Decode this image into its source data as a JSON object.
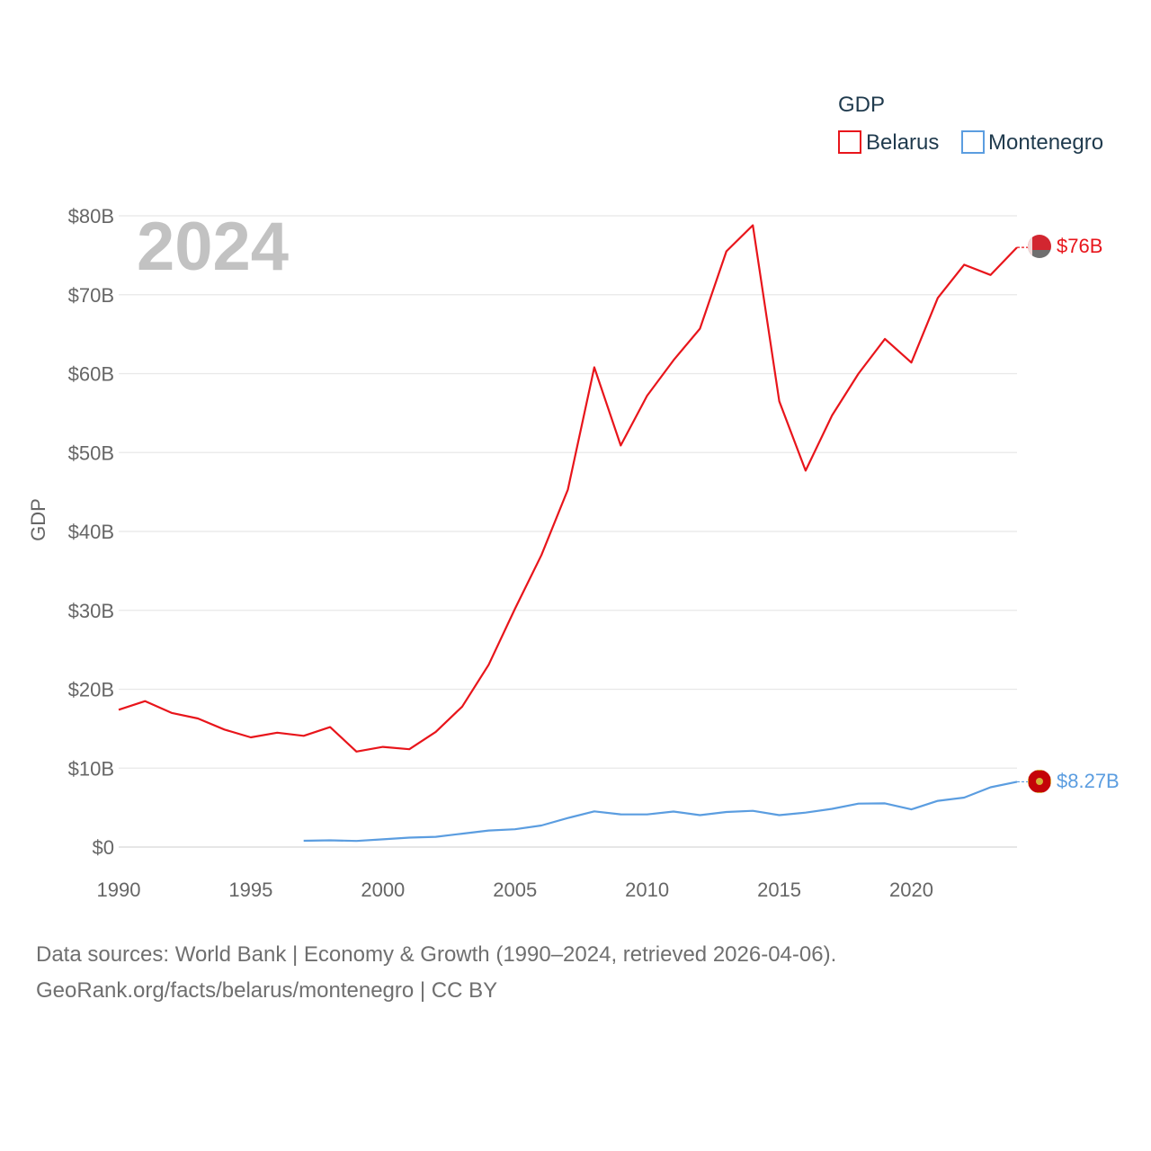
{
  "chart_data": {
    "type": "line",
    "year_label": "2024",
    "ylabel": "GDP",
    "legend": {
      "title": "GDP",
      "position": "top-right"
    },
    "ylim": [
      0,
      80
    ],
    "xlim": [
      1990,
      2024
    ],
    "y_ticks": [
      {
        "value": 0,
        "label": "$0"
      },
      {
        "value": 10,
        "label": "$10B"
      },
      {
        "value": 20,
        "label": "$20B"
      },
      {
        "value": 30,
        "label": "$30B"
      },
      {
        "value": 40,
        "label": "$40B"
      },
      {
        "value": 50,
        "label": "$50B"
      },
      {
        "value": 60,
        "label": "$60B"
      },
      {
        "value": 70,
        "label": "$70B"
      },
      {
        "value": 80,
        "label": "$80B"
      }
    ],
    "x_ticks": [
      {
        "value": 1990,
        "label": "1990"
      },
      {
        "value": 1995,
        "label": "1995"
      },
      {
        "value": 2000,
        "label": "2000"
      },
      {
        "value": 2005,
        "label": "2005"
      },
      {
        "value": 2010,
        "label": "2010"
      },
      {
        "value": 2015,
        "label": "2015"
      },
      {
        "value": 2020,
        "label": "2020"
      }
    ],
    "series": [
      {
        "name": "Belarus",
        "color": "#e8151b",
        "end_label": "$76B",
        "x": [
          1990,
          1991,
          1992,
          1993,
          1994,
          1995,
          1996,
          1997,
          1998,
          1999,
          2000,
          2001,
          2002,
          2003,
          2004,
          2005,
          2006,
          2007,
          2008,
          2009,
          2010,
          2011,
          2012,
          2013,
          2014,
          2015,
          2016,
          2017,
          2018,
          2019,
          2020,
          2021,
          2022,
          2023,
          2024
        ],
        "values": [
          17.4,
          18.5,
          17.0,
          16.3,
          14.9,
          13.9,
          14.5,
          14.1,
          15.2,
          12.1,
          12.7,
          12.4,
          14.6,
          17.8,
          23.1,
          30.2,
          37.0,
          45.3,
          60.8,
          50.9,
          57.2,
          61.7,
          65.7,
          75.5,
          78.8,
          56.5,
          47.7,
          54.7,
          60.0,
          64.4,
          61.4,
          69.6,
          73.8,
          72.5,
          76.0
        ]
      },
      {
        "name": "Montenegro",
        "color": "#5b9de0",
        "end_label": "$8.27B",
        "x": [
          1997,
          1998,
          1999,
          2000,
          2001,
          2002,
          2003,
          2004,
          2005,
          2006,
          2007,
          2008,
          2009,
          2010,
          2011,
          2012,
          2013,
          2014,
          2015,
          2016,
          2017,
          2018,
          2019,
          2020,
          2021,
          2022,
          2023,
          2024
        ],
        "values": [
          0.8,
          0.85,
          0.78,
          0.98,
          1.2,
          1.3,
          1.7,
          2.1,
          2.26,
          2.73,
          3.68,
          4.52,
          4.15,
          4.14,
          4.5,
          4.05,
          4.45,
          4.59,
          4.05,
          4.37,
          4.84,
          5.5,
          5.54,
          4.78,
          5.86,
          6.27,
          7.58,
          8.27
        ]
      }
    ]
  },
  "footer": {
    "source_line1": "Data sources: World Bank | Economy & Growth (1990–2024, retrieved 2026-04-06).",
    "source_line2": "GeoRank.org/facts/belarus/montenegro | CC BY"
  },
  "flags": {
    "belarus": {
      "color_top": "#d22630",
      "color_bottom": "#6f6f6f"
    },
    "montenegro": {
      "color_field": "#c40308",
      "color_emblem": "#d4af37"
    }
  }
}
